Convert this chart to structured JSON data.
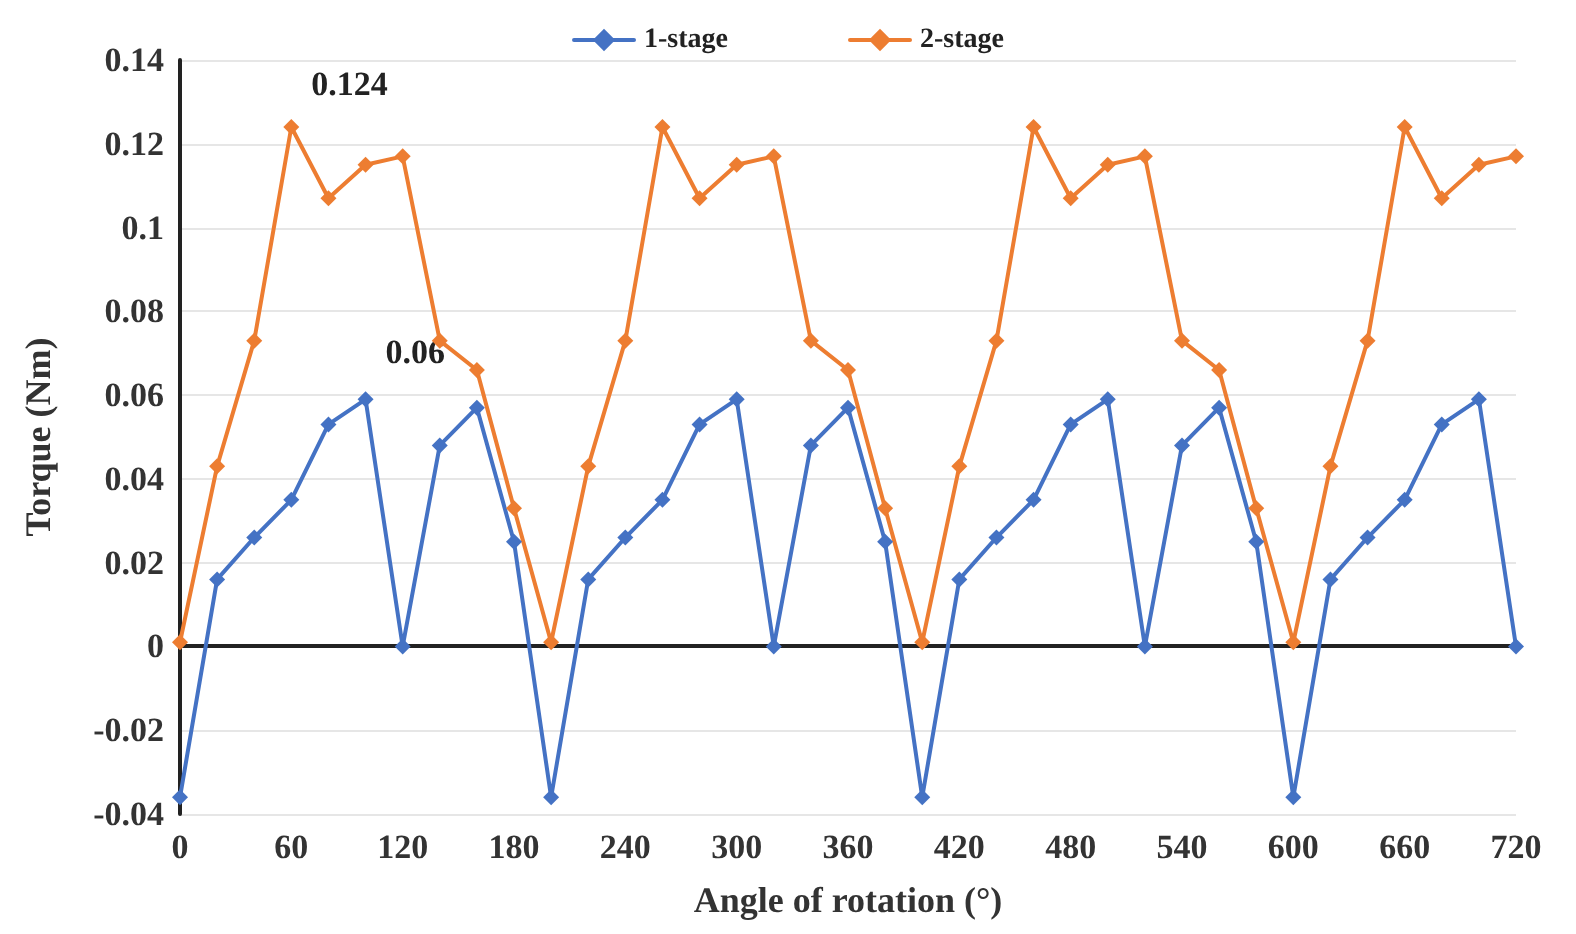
{
  "chart_data": {
    "type": "line",
    "xlabel": "Angle of rotation (°)",
    "ylabel": "Torque (Nm)",
    "x": [
      0,
      20,
      40,
      60,
      80,
      100,
      120,
      140,
      160,
      180,
      200,
      220,
      240,
      260,
      280,
      300,
      320,
      340,
      360,
      380,
      400,
      420,
      440,
      460,
      480,
      500,
      520,
      540,
      560,
      580,
      600,
      620,
      640,
      660,
      680,
      700,
      720
    ],
    "series": [
      {
        "name": "1-stage",
        "color": "#4472c4",
        "values": [
          -0.036,
          0.016,
          0.026,
          0.035,
          0.053,
          0.059,
          0,
          0.048,
          0.057,
          0.025,
          -0.036,
          0.016,
          0.026,
          0.035,
          0.053,
          0.059,
          0,
          0.048,
          0.057,
          0.025,
          -0.036,
          0.016,
          0.026,
          0.035,
          0.053,
          0.059,
          0,
          0.048,
          0.057,
          0.025,
          -0.036,
          0.016,
          0.026,
          0.035,
          0.053,
          0.059,
          0
        ]
      },
      {
        "name": "2-stage",
        "color": "#ed7d31",
        "values": [
          0.001,
          0.043,
          0.073,
          0.124,
          0.107,
          0.115,
          0.117,
          0.073,
          0.066,
          0.033,
          0.001,
          0.043,
          0.073,
          0.124,
          0.107,
          0.115,
          0.117,
          0.073,
          0.066,
          0.033,
          0.001,
          0.043,
          0.073,
          0.124,
          0.107,
          0.115,
          0.117,
          0.073,
          0.066,
          0.033,
          0.001,
          0.043,
          0.073,
          0.124,
          0.107,
          0.115,
          0.117
        ]
      }
    ],
    "annotations": [
      {
        "text": "0.124",
        "x": 60,
        "y": 0.124
      },
      {
        "text": "0.06",
        "x": 100,
        "y": 0.06
      }
    ],
    "xlim": [
      0,
      720
    ],
    "xticks": [
      0,
      60,
      120,
      180,
      240,
      300,
      360,
      420,
      480,
      540,
      600,
      660,
      720
    ],
    "ylim": [
      -0.04,
      0.14
    ],
    "yticks": [
      -0.04,
      -0.02,
      0,
      0.02,
      0.04,
      0.06,
      0.08,
      0.1,
      0.12,
      0.14
    ],
    "grid": "y",
    "legend": "top",
    "marker": "diamond",
    "line_style": "solid"
  }
}
